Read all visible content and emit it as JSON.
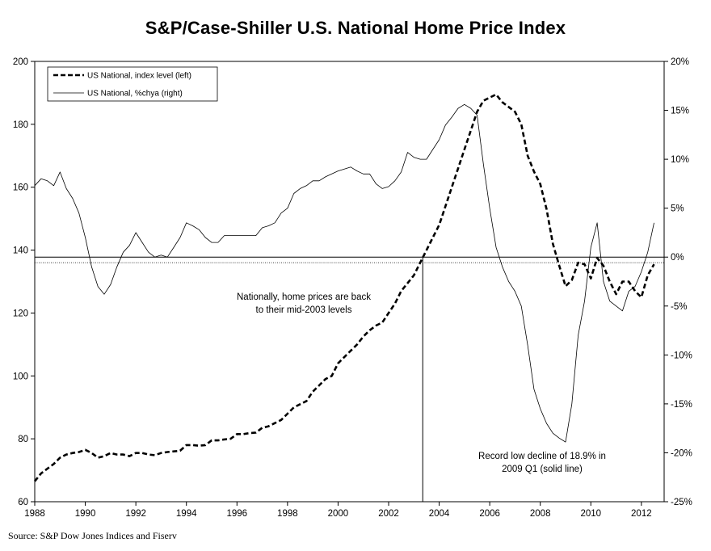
{
  "chart_data": {
    "type": "line",
    "title": "S&P/Case-Shiller U.S. National Home Price Index",
    "source": "Source: S&P Dow Jones Indices and Fiserv",
    "x_range": [
      1988,
      2012.9
    ],
    "x_ticks": [
      1988,
      1990,
      1992,
      1994,
      1996,
      1998,
      2000,
      2002,
      2004,
      2006,
      2008,
      2010,
      2012
    ],
    "x_tick_labels": [
      "1988",
      "1990",
      "1992",
      "1994",
      "1996",
      "1998",
      "2000",
      "2002",
      "2004",
      "2006",
      "2008",
      "2010",
      "2012"
    ],
    "y_left": {
      "range": [
        60,
        200
      ],
      "ticks": [
        60,
        80,
        100,
        120,
        140,
        160,
        180,
        200
      ],
      "tick_labels": [
        "60",
        "80",
        "100",
        "120",
        "140",
        "160",
        "180",
        "200"
      ]
    },
    "y_right": {
      "range": [
        -25,
        20
      ],
      "ticks": [
        -25,
        -20,
        -15,
        -10,
        -5,
        0,
        5,
        10,
        15,
        20
      ],
      "tick_labels": [
        "-25%",
        "-20%",
        "-15%",
        "-10%",
        "-5%",
        "0%",
        "5%",
        "10%",
        "15%",
        "20%"
      ]
    },
    "legend_position": "top-left",
    "series": [
      {
        "name": "US National, index level (left)",
        "axis": "left",
        "style": "dashed",
        "x": [
          1988.0,
          1988.25,
          1988.5,
          1988.75,
          1989.0,
          1989.25,
          1989.5,
          1989.75,
          1990.0,
          1990.25,
          1990.5,
          1990.75,
          1991.0,
          1991.25,
          1991.5,
          1991.75,
          1992.0,
          1992.25,
          1992.5,
          1992.75,
          1993.0,
          1993.25,
          1993.5,
          1993.75,
          1994.0,
          1994.25,
          1994.5,
          1994.75,
          1995.0,
          1995.25,
          1995.5,
          1995.75,
          1996.0,
          1996.25,
          1996.5,
          1996.75,
          1997.0,
          1997.25,
          1997.5,
          1997.75,
          1998.0,
          1998.25,
          1998.5,
          1998.75,
          1999.0,
          1999.25,
          1999.5,
          1999.75,
          2000.0,
          2000.25,
          2000.5,
          2000.75,
          2001.0,
          2001.25,
          2001.5,
          2001.75,
          2002.0,
          2002.25,
          2002.5,
          2002.75,
          2003.0,
          2003.25,
          2003.5,
          2003.75,
          2004.0,
          2004.25,
          2004.5,
          2004.75,
          2005.0,
          2005.25,
          2005.5,
          2005.75,
          2006.0,
          2006.25,
          2006.5,
          2006.75,
          2007.0,
          2007.25,
          2007.5,
          2007.75,
          2008.0,
          2008.25,
          2008.5,
          2008.75,
          2009.0,
          2009.25,
          2009.5,
          2009.75,
          2010.0,
          2010.25,
          2010.5,
          2010.75,
          2011.0,
          2011.25,
          2011.5,
          2011.75,
          2012.0,
          2012.25,
          2012.5
        ],
        "values": [
          66.5,
          69.0,
          70.5,
          72.0,
          74.0,
          75.0,
          75.5,
          75.8,
          76.5,
          75.5,
          74.0,
          74.5,
          75.5,
          75.0,
          75.0,
          74.5,
          75.5,
          75.5,
          75.0,
          74.8,
          75.5,
          75.8,
          76.0,
          76.2,
          78.0,
          78.0,
          77.8,
          78.0,
          79.5,
          79.5,
          79.8,
          80.0,
          81.5,
          81.5,
          81.8,
          82.0,
          83.5,
          84.0,
          85.0,
          86.0,
          88.0,
          90.0,
          91.0,
          92.0,
          95.0,
          97.0,
          99.0,
          100.0,
          104.0,
          106.0,
          108.0,
          110.0,
          112.5,
          114.5,
          116.0,
          117.0,
          120.0,
          123.0,
          127.0,
          129.5,
          132.0,
          136.0,
          140.0,
          144.0,
          148.0,
          154.0,
          160.0,
          166.0,
          172.0,
          178.0,
          184.0,
          187.5,
          188.5,
          189.5,
          187.0,
          185.5,
          184.0,
          180.0,
          170.0,
          165.0,
          161.0,
          153.0,
          142.0,
          135.0,
          128.5,
          130.5,
          136.0,
          135.5,
          131.0,
          137.5,
          135.0,
          130.0,
          126.0,
          130.0,
          130.0,
          127.0,
          125.0,
          132.0,
          135.5
        ]
      },
      {
        "name": "US National, %chya (right)",
        "axis": "right",
        "style": "solid",
        "x": [
          1988.0,
          1988.25,
          1988.5,
          1988.75,
          1989.0,
          1989.25,
          1989.5,
          1989.75,
          1990.0,
          1990.25,
          1990.5,
          1990.75,
          1991.0,
          1991.25,
          1991.5,
          1991.75,
          1992.0,
          1992.25,
          1992.5,
          1992.75,
          1993.0,
          1993.25,
          1993.5,
          1993.75,
          1994.0,
          1994.25,
          1994.5,
          1994.75,
          1995.0,
          1995.25,
          1995.5,
          1995.75,
          1996.0,
          1996.25,
          1996.5,
          1996.75,
          1997.0,
          1997.25,
          1997.5,
          1997.75,
          1998.0,
          1998.25,
          1998.5,
          1998.75,
          1999.0,
          1999.25,
          1999.5,
          1999.75,
          2000.0,
          2000.25,
          2000.5,
          2000.75,
          2001.0,
          2001.25,
          2001.5,
          2001.75,
          2002.0,
          2002.25,
          2002.5,
          2002.75,
          2003.0,
          2003.25,
          2003.5,
          2003.75,
          2004.0,
          2004.25,
          2004.5,
          2004.75,
          2005.0,
          2005.25,
          2005.5,
          2005.75,
          2006.0,
          2006.25,
          2006.5,
          2006.75,
          2007.0,
          2007.25,
          2007.5,
          2007.75,
          2008.0,
          2008.25,
          2008.5,
          2008.75,
          2009.0,
          2009.25,
          2009.5,
          2009.75,
          2010.0,
          2010.25,
          2010.5,
          2010.75,
          2011.0,
          2011.25,
          2011.5,
          2011.75,
          2012.0,
          2012.25,
          2012.5
        ],
        "values": [
          7.3,
          8.0,
          7.8,
          7.3,
          8.7,
          7.0,
          6.0,
          4.5,
          2.0,
          -1.0,
          -3.0,
          -3.8,
          -2.8,
          -1.0,
          0.5,
          1.2,
          2.5,
          1.5,
          0.5,
          0.0,
          0.2,
          0.0,
          1.0,
          2.0,
          3.5,
          3.2,
          2.8,
          2.0,
          1.5,
          1.5,
          2.2,
          2.2,
          2.2,
          2.2,
          2.2,
          2.2,
          3.0,
          3.2,
          3.5,
          4.5,
          5.0,
          6.5,
          7.0,
          7.3,
          7.8,
          7.8,
          8.2,
          8.5,
          8.8,
          9.0,
          9.2,
          8.8,
          8.5,
          8.5,
          7.5,
          7.0,
          7.2,
          7.8,
          8.7,
          10.7,
          10.2,
          10.0,
          10.0,
          11.0,
          12.0,
          13.5,
          14.3,
          15.2,
          15.6,
          15.2,
          14.5,
          9.5,
          5.0,
          1.0,
          -1.0,
          -2.5,
          -3.5,
          -5.0,
          -9.0,
          -13.5,
          -15.5,
          -17.0,
          -18.0,
          -18.5,
          -18.9,
          -15.0,
          -8.0,
          -4.5,
          1.0,
          3.5,
          -2.5,
          -4.5,
          -5.0,
          -5.5,
          -3.5,
          -3.0,
          -1.5,
          0.5,
          3.5
        ]
      }
    ],
    "reference_lines": [
      {
        "axis": "right",
        "value": 0,
        "style": "solid"
      },
      {
        "axis": "left",
        "value": 136,
        "style": "dotted"
      }
    ],
    "annotations": [
      {
        "lines": [
          "Nationally, home prices are back",
          "to their mid-2003 levels"
        ]
      },
      {
        "lines": [
          "Record low decline of 18.9% in",
          "2009 Q1 (solid line)"
        ]
      }
    ]
  }
}
